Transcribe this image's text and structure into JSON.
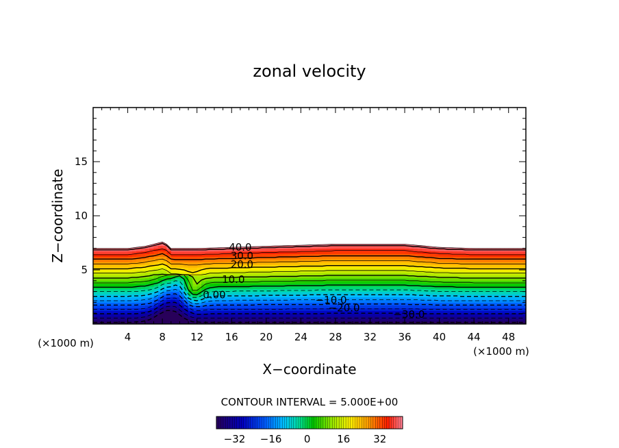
{
  "chart_data": {
    "type": "heatmap",
    "title": "zonal velocity",
    "xlabel": "X−coordinate",
    "ylabel": "Z−coordinate",
    "x_unit_label_left": "(×1000 m)",
    "x_unit_label_right": "(×1000 m)",
    "xlim": [
      0,
      50
    ],
    "ylim": [
      0,
      20
    ],
    "x_ticks": [
      4,
      8,
      12,
      16,
      20,
      24,
      28,
      32,
      36,
      40,
      44,
      48
    ],
    "y_ticks": [
      5,
      10,
      15
    ],
    "contour_interval_text": "CONTOUR INTERVAL = 5.000E+00",
    "contour_interval": 5,
    "field_top_height": [
      [
        0,
        7.0
      ],
      [
        4,
        7.0
      ],
      [
        6,
        7.2
      ],
      [
        8,
        7.6
      ],
      [
        8.5,
        7.4
      ],
      [
        9,
        7.0
      ],
      [
        12,
        7.0
      ],
      [
        20,
        7.2
      ],
      [
        28,
        7.4
      ],
      [
        36,
        7.4
      ],
      [
        40,
        7.1
      ],
      [
        44,
        7.0
      ],
      [
        50,
        7.0
      ]
    ],
    "contour_labels": [
      {
        "text": "40.0",
        "x": 17.0,
        "y": 7.1
      },
      {
        "text": "30.0",
        "x": 17.2,
        "y": 6.3
      },
      {
        "text": "20.0",
        "x": 17.2,
        "y": 5.5
      },
      {
        "text": "10.0",
        "x": 16.2,
        "y": 4.1
      },
      {
        "text": "0.00",
        "x": 14.0,
        "y": 2.7
      },
      {
        "text": "−10.0",
        "x": 27.5,
        "y": 2.2
      },
      {
        "text": "−20.0",
        "x": 29.0,
        "y": 1.5
      },
      {
        "text": "−30.0",
        "x": 36.5,
        "y": 0.9
      }
    ],
    "colorbar": {
      "min": -40,
      "max": 42,
      "tick_values": [
        -32,
        -16,
        0,
        16,
        32
      ],
      "tick_labels": [
        "−32",
        "−16",
        "0",
        "16",
        "32"
      ],
      "colormap": "rainbow"
    }
  }
}
